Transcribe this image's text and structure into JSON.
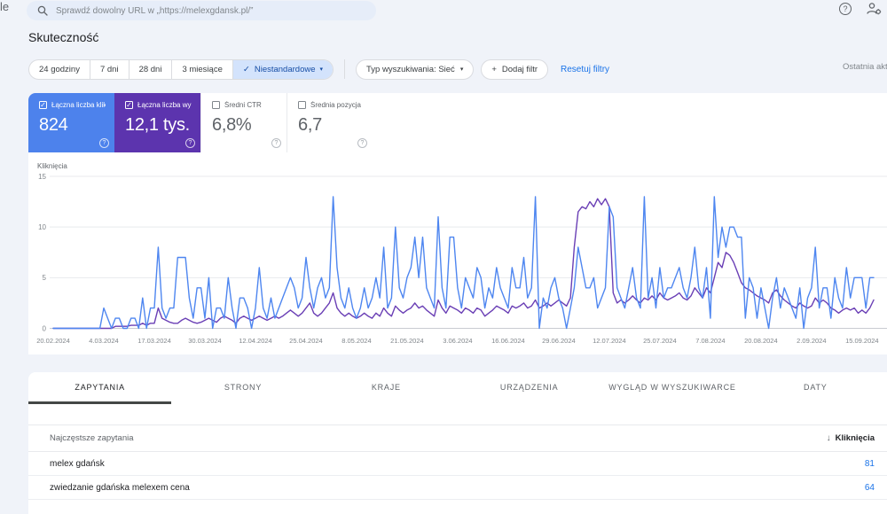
{
  "topbar": {
    "logo_fragment": "le",
    "search_placeholder": "Sprawdź dowolny URL w „https://melexgdansk.pl/”"
  },
  "icons": {
    "check": "✓",
    "caret": "▾",
    "plus": "+",
    "help": "?",
    "sort_desc": "↓"
  },
  "page_title": "Skuteczność",
  "filters": {
    "ranges": [
      {
        "label": "24 godziny"
      },
      {
        "label": "7 dni"
      },
      {
        "label": "28 dni"
      },
      {
        "label": "3 miesiące"
      },
      {
        "label": "Niestandardowe",
        "checked": true
      }
    ],
    "search_type_label": "Typ wyszukiwania: Sieć",
    "add_filter_label": "Dodaj filtr",
    "reset_label": "Resetuj filtry",
    "last_update_fragment": "Ostatnia aktu"
  },
  "metrics": [
    {
      "label": "Łączna liczba klik…",
      "value": "824",
      "checked": true,
      "color": "#4d82ec"
    },
    {
      "label": "Łączna liczba wy…",
      "value": "12,1 tys.",
      "checked": true,
      "color": "#5c34ae"
    },
    {
      "label": "Średni CTR",
      "value": "6,8%",
      "checked": false,
      "color": "#ffffff"
    },
    {
      "label": "Średnia pozycja",
      "value": "6,7",
      "checked": false,
      "color": "#ffffff"
    }
  ],
  "chart_data": {
    "type": "line",
    "ylabel": "Kliknięcia",
    "yticks": [
      0,
      5,
      10,
      15
    ],
    "ylim": [
      0,
      15
    ],
    "grid": true,
    "legend_position": "none",
    "x_labels": [
      "20.02.2024",
      "4.03.2024",
      "17.03.2024",
      "30.03.2024",
      "12.04.2024",
      "25.04.2024",
      "8.05.2024",
      "21.05.2024",
      "3.06.2024",
      "16.06.2024",
      "29.06.2024",
      "12.07.2024",
      "25.07.2024",
      "7.08.2024",
      "20.08.2024",
      "2.09.2024",
      "15.09.2024"
    ],
    "label_day_step": 13,
    "series": [
      {
        "name": "Łączna liczba klik… (Kliknięcia)",
        "color": "#4e86f0",
        "values": [
          0,
          0,
          0,
          0,
          0,
          0,
          0,
          0,
          0,
          0,
          0,
          0,
          0,
          2,
          1,
          0,
          1,
          1,
          0,
          0,
          1,
          1,
          0,
          3,
          0,
          2,
          2,
          8,
          2,
          1,
          2,
          2,
          7,
          7,
          7,
          3,
          1,
          4,
          4,
          1,
          5,
          0,
          2,
          2,
          1,
          5,
          2,
          0,
          3,
          3,
          2,
          0,
          2,
          6,
          2,
          1,
          3,
          1,
          2,
          3,
          4,
          5,
          4,
          2,
          3,
          7,
          4,
          2,
          4,
          5,
          3,
          4,
          13,
          6,
          3,
          2,
          4,
          2,
          1,
          2,
          4,
          2,
          3,
          5,
          3,
          8,
          2,
          3,
          10,
          4,
          3,
          5,
          6,
          9,
          5,
          9,
          4,
          3,
          2,
          11,
          4,
          2,
          9,
          9,
          4,
          2,
          5,
          4,
          3,
          6,
          5,
          2,
          4,
          3,
          6,
          4,
          3,
          2,
          6,
          4,
          4,
          7,
          3,
          4,
          13,
          0,
          3,
          2,
          4,
          5,
          3,
          2,
          0,
          2,
          4,
          8,
          6,
          4,
          4,
          5,
          2,
          3,
          4,
          12,
          11,
          4,
          3,
          2,
          4,
          6,
          3,
          2,
          13,
          3,
          5,
          2,
          6,
          3,
          4,
          4,
          5,
          6,
          4,
          3,
          5,
          8,
          4,
          3,
          6,
          1,
          13,
          7,
          10,
          8,
          10,
          10,
          9,
          9,
          1,
          5,
          4,
          1,
          4,
          2,
          0,
          3,
          5,
          2,
          4,
          3,
          2,
          1,
          4,
          0,
          3,
          4,
          8,
          2,
          4,
          4,
          1,
          5,
          3,
          2,
          6,
          3,
          5,
          5,
          5,
          2,
          5,
          5
        ]
      },
      {
        "name": "Łączna liczba wy… (Wyświetlenia, skala względna)",
        "color": "#6a3fb5",
        "values": [
          0,
          0,
          0,
          0,
          0,
          0,
          0,
          0,
          0,
          0,
          0,
          0,
          0,
          0,
          0,
          0,
          0.2,
          0.2,
          0.2,
          0.2,
          0.3,
          0.3,
          0.3,
          0.5,
          0.3,
          0.5,
          0.5,
          2,
          1,
          0.8,
          0.6,
          0.5,
          0.5,
          0.8,
          1,
          0.8,
          0.6,
          0.5,
          0.6,
          0.8,
          1,
          0.8,
          0.6,
          1,
          1.2,
          1,
          0.8,
          0.5,
          1,
          1.2,
          1,
          0.8,
          1,
          1.2,
          1,
          0.8,
          1,
          1.2,
          1,
          1.2,
          1.5,
          1.8,
          1.5,
          1.2,
          1.5,
          2,
          2.5,
          1.5,
          1.2,
          1.5,
          2,
          2.5,
          3.5,
          2,
          1.5,
          1.2,
          1.5,
          1.2,
          1,
          1.2,
          1.5,
          1.2,
          1,
          1.5,
          1.2,
          2,
          1.5,
          1.2,
          2.2,
          1.8,
          1.5,
          1.8,
          2,
          2.5,
          2,
          2.2,
          1.8,
          1.5,
          1.2,
          2.8,
          2,
          1.5,
          2.2,
          2,
          1.8,
          1.5,
          2,
          1.8,
          1.5,
          2,
          1.8,
          1.2,
          1.5,
          1.8,
          2.2,
          2,
          1.8,
          1.5,
          2.2,
          2,
          2.2,
          2.5,
          2,
          2.2,
          2.8,
          2,
          2.2,
          2.5,
          2.2,
          2.5,
          2.8,
          2.5,
          2.2,
          3,
          8,
          11.5,
          12,
          11.8,
          12.5,
          12,
          12.8,
          12.2,
          12.8,
          12,
          3.5,
          2.5,
          2.8,
          2.5,
          2.8,
          3.2,
          2.8,
          2.5,
          3,
          2.8,
          3.2,
          2.8,
          3.5,
          3,
          2.8,
          3,
          3.2,
          3.5,
          3,
          2.8,
          3.2,
          4,
          3.5,
          3,
          4,
          3.5,
          5,
          6.5,
          6,
          7.5,
          7.2,
          6.5,
          5.5,
          4.5,
          4,
          3.8,
          3.5,
          3.2,
          3,
          2.8,
          2.5,
          3.5,
          3.8,
          3.2,
          2.8,
          2.5,
          2.2,
          2,
          2.5,
          2.2,
          2,
          2.2,
          3,
          2.5,
          2.8,
          2.5,
          2,
          1.8,
          1.5,
          1.8,
          2,
          1.8,
          2,
          1.5,
          1.8,
          1.5,
          2,
          2.8
        ]
      }
    ]
  },
  "tabs": [
    {
      "label": "ZAPYTANIA",
      "active": true
    },
    {
      "label": "STRONY",
      "active": false
    },
    {
      "label": "KRAJE",
      "active": false
    },
    {
      "label": "URZĄDZENIA",
      "active": false
    },
    {
      "label": "WYGLĄD W WYSZUKIWARCE",
      "active": false
    },
    {
      "label": "DATY",
      "active": false
    }
  ],
  "table": {
    "header_left": "Najczęstsze zapytania",
    "header_right": "Kliknięcia",
    "rows": [
      {
        "query": "melex gdańsk",
        "clicks": "81"
      },
      {
        "query": "zwiedzanie gdańska melexem cena",
        "clicks": "64"
      }
    ]
  }
}
